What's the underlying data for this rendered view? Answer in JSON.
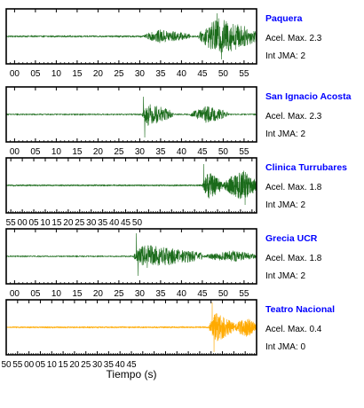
{
  "chart_data": {
    "type": "line",
    "xlabel": "Tiempo (s)",
    "max_accel_label": "Acel. Max.",
    "intensity_label": "Int JMA:",
    "panels": [
      {
        "station": "Paquera",
        "max_accel": "2.3",
        "int_jma": "2",
        "color": "#1a6b1a",
        "station_color": "#0000ff",
        "xlim": [
          -2,
          58
        ],
        "tick_labels": [
          "00",
          "05",
          "10",
          "15",
          "20",
          "25",
          "30",
          "35",
          "40",
          "45",
          "50",
          "55"
        ],
        "noise_amp": 0.04,
        "bursts": [
          {
            "start": 31,
            "peak": 35,
            "end": 42,
            "amp": 0.35
          },
          {
            "start": 44,
            "peak": 49,
            "end": 58,
            "amp": 1.0
          }
        ],
        "spikes": [
          {
            "x": 48.5,
            "amp": 1.3
          },
          {
            "x": 49.6,
            "amp": -1.3
          }
        ]
      },
      {
        "station": "San Ignacio Acosta",
        "max_accel": "2.3",
        "int_jma": "2",
        "color": "#1a6b1a",
        "station_color": "#0000ff",
        "xlim": [
          -2,
          58
        ],
        "tick_labels": [
          "00",
          "05",
          "10",
          "15",
          "20",
          "25",
          "30",
          "35",
          "40",
          "45",
          "50",
          "55"
        ],
        "noise_amp": 0.03,
        "bursts": [
          {
            "start": 30.5,
            "peak": 32,
            "end": 38,
            "amp": 0.6
          },
          {
            "start": 42,
            "peak": 46,
            "end": 51,
            "amp": 0.45
          }
        ],
        "spikes": [
          {
            "x": 31.2,
            "amp": -1.3
          },
          {
            "x": 30.9,
            "amp": 1.0
          }
        ]
      },
      {
        "station": "Clinica Turrubares",
        "max_accel": "1.8",
        "int_jma": "2",
        "color": "#1a6b1a",
        "station_color": "#0000ff",
        "xlim": [
          -57,
          52
        ],
        "tick_labels": [
          "55",
          "00",
          "05",
          "10",
          "15",
          "20",
          "25",
          "30",
          "35",
          "40",
          "45",
          "50"
        ],
        "noise_amp": 0.03,
        "bursts": [
          {
            "start": 28.5,
            "peak": 31,
            "end": 37,
            "amp": 0.75
          },
          {
            "start": 37,
            "peak": 46,
            "end": 52,
            "amp": 0.85
          }
        ],
        "spikes": [
          {
            "x": 29,
            "amp": 1.2
          },
          {
            "x": 47,
            "amp": -1.1
          }
        ]
      },
      {
        "station": "Grecia UCR",
        "max_accel": "1.8",
        "int_jma": "2",
        "color": "#1a6b1a",
        "station_color": "#0000ff",
        "xlim": [
          -2,
          58
        ],
        "tick_labels": [
          "00",
          "05",
          "10",
          "15",
          "20",
          "25",
          "30",
          "35",
          "40",
          "45",
          "50",
          "55"
        ],
        "noise_amp": 0.03,
        "bursts": [
          {
            "start": 28.5,
            "peak": 31,
            "end": 45,
            "amp": 0.65
          },
          {
            "start": 45,
            "peak": 52,
            "end": 58,
            "amp": 0.3
          }
        ],
        "spikes": [
          {
            "x": 29.2,
            "amp": 1.3
          },
          {
            "x": 29.6,
            "amp": -1.1
          }
        ]
      },
      {
        "station": "Teatro Nacional",
        "max_accel": "0.4",
        "int_jma": "0",
        "color": "#ffaa00",
        "station_color": "#0000ff",
        "xlim": [
          -60,
          50
        ],
        "tick_labels": [
          "50",
          "55",
          "00",
          "05",
          "10",
          "15",
          "20",
          "25",
          "30",
          "35",
          "40",
          "45"
        ],
        "noise_amp": 0.03,
        "bursts": [
          {
            "start": 29,
            "peak": 32,
            "end": 40,
            "amp": 0.8
          },
          {
            "start": 40,
            "peak": 45,
            "end": 50,
            "amp": 0.55
          }
        ],
        "spikes": [
          {
            "x": 30.5,
            "amp": 1.4
          },
          {
            "x": 31.3,
            "amp": -1.4
          }
        ]
      }
    ]
  }
}
